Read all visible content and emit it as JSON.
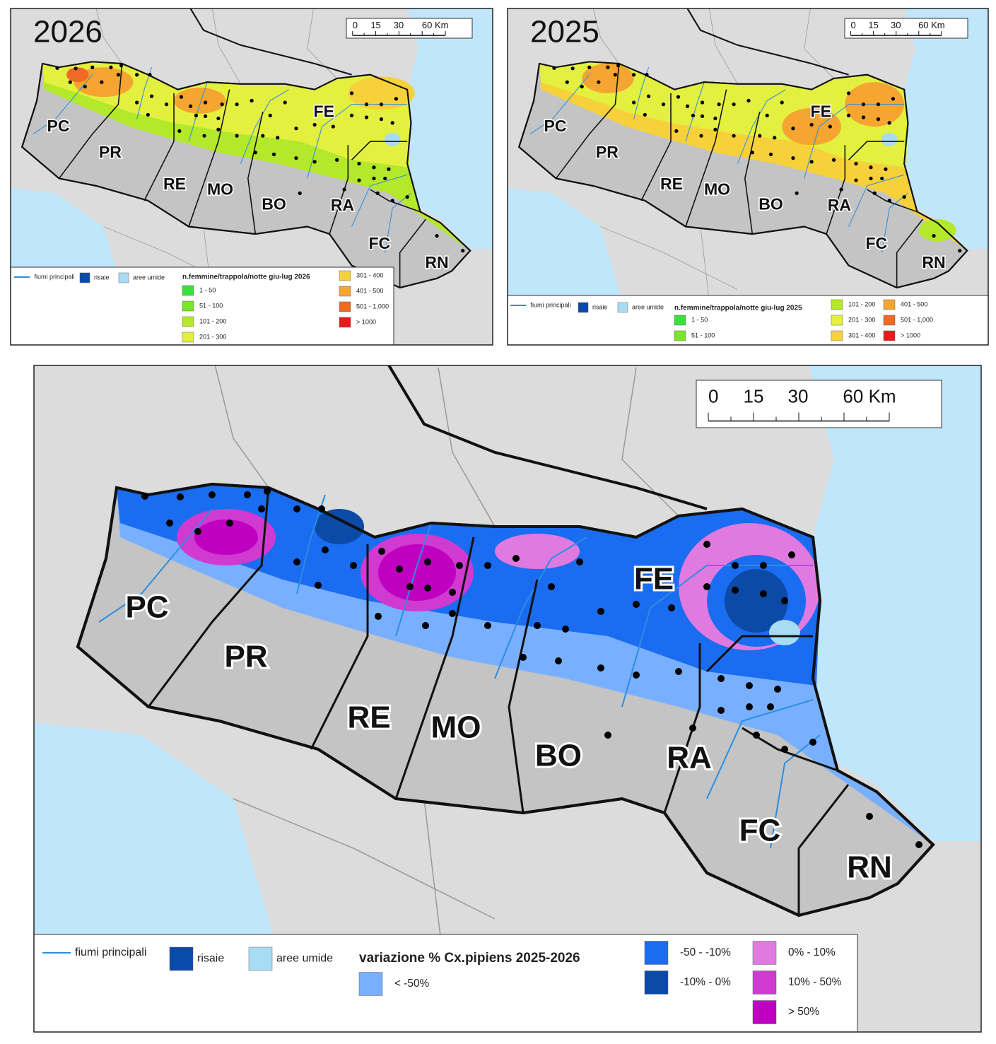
{
  "maps": [
    {
      "year": "2026",
      "scale": [
        "0",
        "15",
        "30",
        "60 Km"
      ],
      "provinces": [
        "PC",
        "PR",
        "RE",
        "MO",
        "BO",
        "FE",
        "RA",
        "FC",
        "RN"
      ],
      "legend": {
        "rivers": "fiumi principali",
        "rice": {
          "label": "risaie",
          "color": "#0a4aa8"
        },
        "wetlands": {
          "label": "aree umide",
          "color": "#a8dcf4"
        },
        "title": "n.femmine/trappola/notte giu-lug 2026",
        "classes": [
          {
            "label": "1 - 50",
            "color": "#3ce03c"
          },
          {
            "label": "51 - 100",
            "color": "#7ae62a"
          },
          {
            "label": "101 - 200",
            "color": "#b4e82a"
          },
          {
            "label": "201 - 300",
            "color": "#e4f040"
          },
          {
            "label": "301 - 400",
            "color": "#f7d13a"
          },
          {
            "label": "401 - 500",
            "color": "#f5a530"
          },
          {
            "label": "501 - 1,000",
            "color": "#ef6a24"
          },
          {
            "label": "> 1000",
            "color": "#e81c1c"
          }
        ]
      }
    },
    {
      "year": "2025",
      "scale": [
        "0",
        "15",
        "30",
        "60 Km"
      ],
      "provinces": [
        "PC",
        "PR",
        "RE",
        "MO",
        "BO",
        "FE",
        "RA",
        "FC",
        "RN"
      ],
      "legend": {
        "rivers": "fiumi principali",
        "rice": {
          "label": "risaie",
          "color": "#0a4aa8"
        },
        "wetlands": {
          "label": "aree umide",
          "color": "#a8dcf4"
        },
        "title": "n.femmine/trappola/notte giu-lug 2025",
        "classes": [
          {
            "label": "1 - 50",
            "color": "#3ce03c"
          },
          {
            "label": "51 - 100",
            "color": "#7ae62a"
          },
          {
            "label": "101 - 200",
            "color": "#b4e82a"
          },
          {
            "label": "201 - 300",
            "color": "#e4f040"
          },
          {
            "label": "301 - 400",
            "color": "#f7d13a"
          },
          {
            "label": "401 - 500",
            "color": "#f5a530"
          },
          {
            "label": "501 - 1,000",
            "color": "#ef6a24"
          },
          {
            "label": "> 1000",
            "color": "#e81c1c"
          }
        ]
      }
    },
    {
      "scale": [
        "0",
        "15",
        "30",
        "60 Km"
      ],
      "provinces": [
        "PC",
        "PR",
        "RE",
        "MO",
        "BO",
        "FE",
        "RA",
        "FC",
        "RN"
      ],
      "legend": {
        "rivers": "fiumi principali",
        "rice": {
          "label": "risaie",
          "color": "#0a4aa8"
        },
        "wetlands": {
          "label": "aree umide",
          "color": "#a8dcf4"
        },
        "title": "variazione % Cx.pipiens 2025-2026",
        "classes": [
          {
            "label": "< -50%",
            "color": "#78b0ff"
          },
          {
            "label": "-50 - -10%",
            "color": "#1a6cf0"
          },
          {
            "label": "-10% - 0%",
            "color": "#0b4aa6"
          },
          {
            "label": "0% - 10%",
            "color": "#e07ae0"
          },
          {
            "label": "10% - 50%",
            "color": "#d03ad0"
          },
          {
            "label": "> 50%",
            "color": "#c000c0"
          }
        ]
      }
    }
  ]
}
